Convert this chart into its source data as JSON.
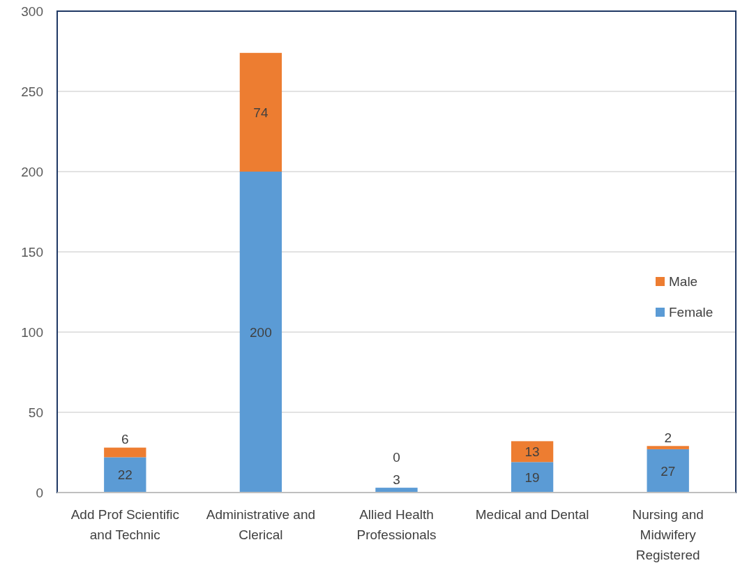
{
  "chart_data": {
    "type": "bar",
    "stacked": true,
    "categories": [
      "Add Prof Scientific and Technic",
      "Administrative and Clerical",
      "Allied Health Professionals",
      "Medical and Dental",
      "Nursing and Midwifery Registered"
    ],
    "series": [
      {
        "name": "Female",
        "color": "#5b9bd5",
        "values": [
          22,
          200,
          3,
          19,
          27
        ]
      },
      {
        "name": "Male",
        "color": "#ed7d31",
        "values": [
          6,
          74,
          0,
          13,
          2
        ]
      }
    ],
    "ylim": [
      0,
      300
    ],
    "yticks": [
      0,
      50,
      100,
      150,
      200,
      250,
      300
    ],
    "grid": "y",
    "legend": "right",
    "data_labels": true
  }
}
